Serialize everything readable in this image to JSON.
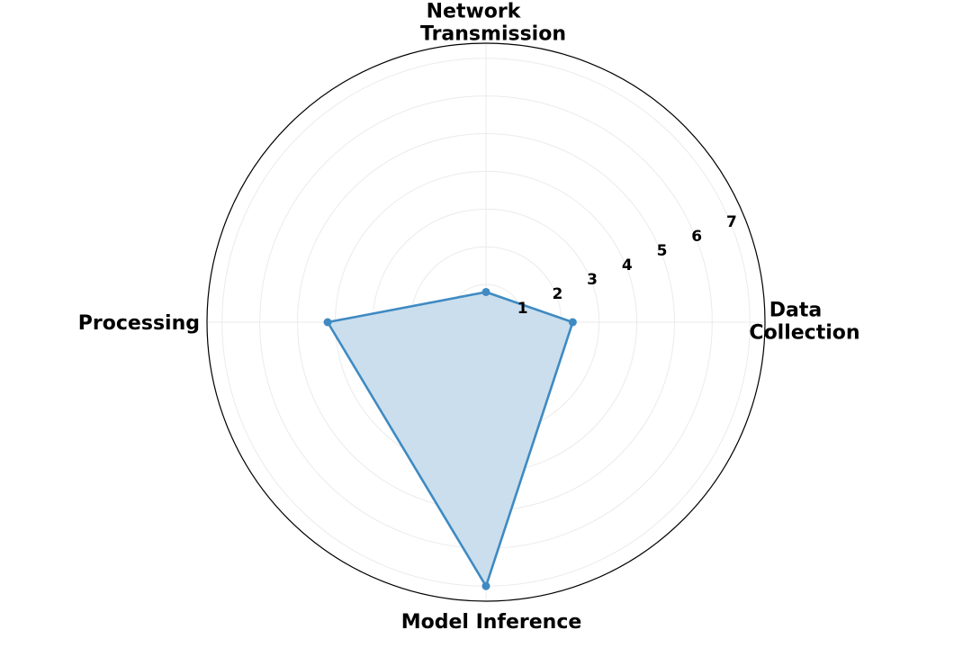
{
  "chart_data": {
    "type": "radar",
    "categories": [
      "Data Collection",
      "Network Transmission",
      "Processing",
      "Model Inference"
    ],
    "category_lines": [
      [
        "Data",
        "Collection"
      ],
      [
        "Network",
        "Transmission"
      ],
      [
        "Processing"
      ],
      [
        "Model Inference"
      ]
    ],
    "series": [
      {
        "values": [
          2.3,
          0.8,
          4.2,
          7.0
        ]
      }
    ],
    "rlim": [
      0,
      7.4
    ],
    "radial_ticks": [
      1,
      2,
      3,
      4,
      5,
      6,
      7
    ],
    "radial_tick_labels": [
      "1",
      "2",
      "3",
      "4",
      "5",
      "6",
      "7"
    ],
    "grid": true,
    "colors": {
      "line": "#3f8ac2",
      "fill": "#c8dcec",
      "point": "#3f8ac2"
    }
  }
}
